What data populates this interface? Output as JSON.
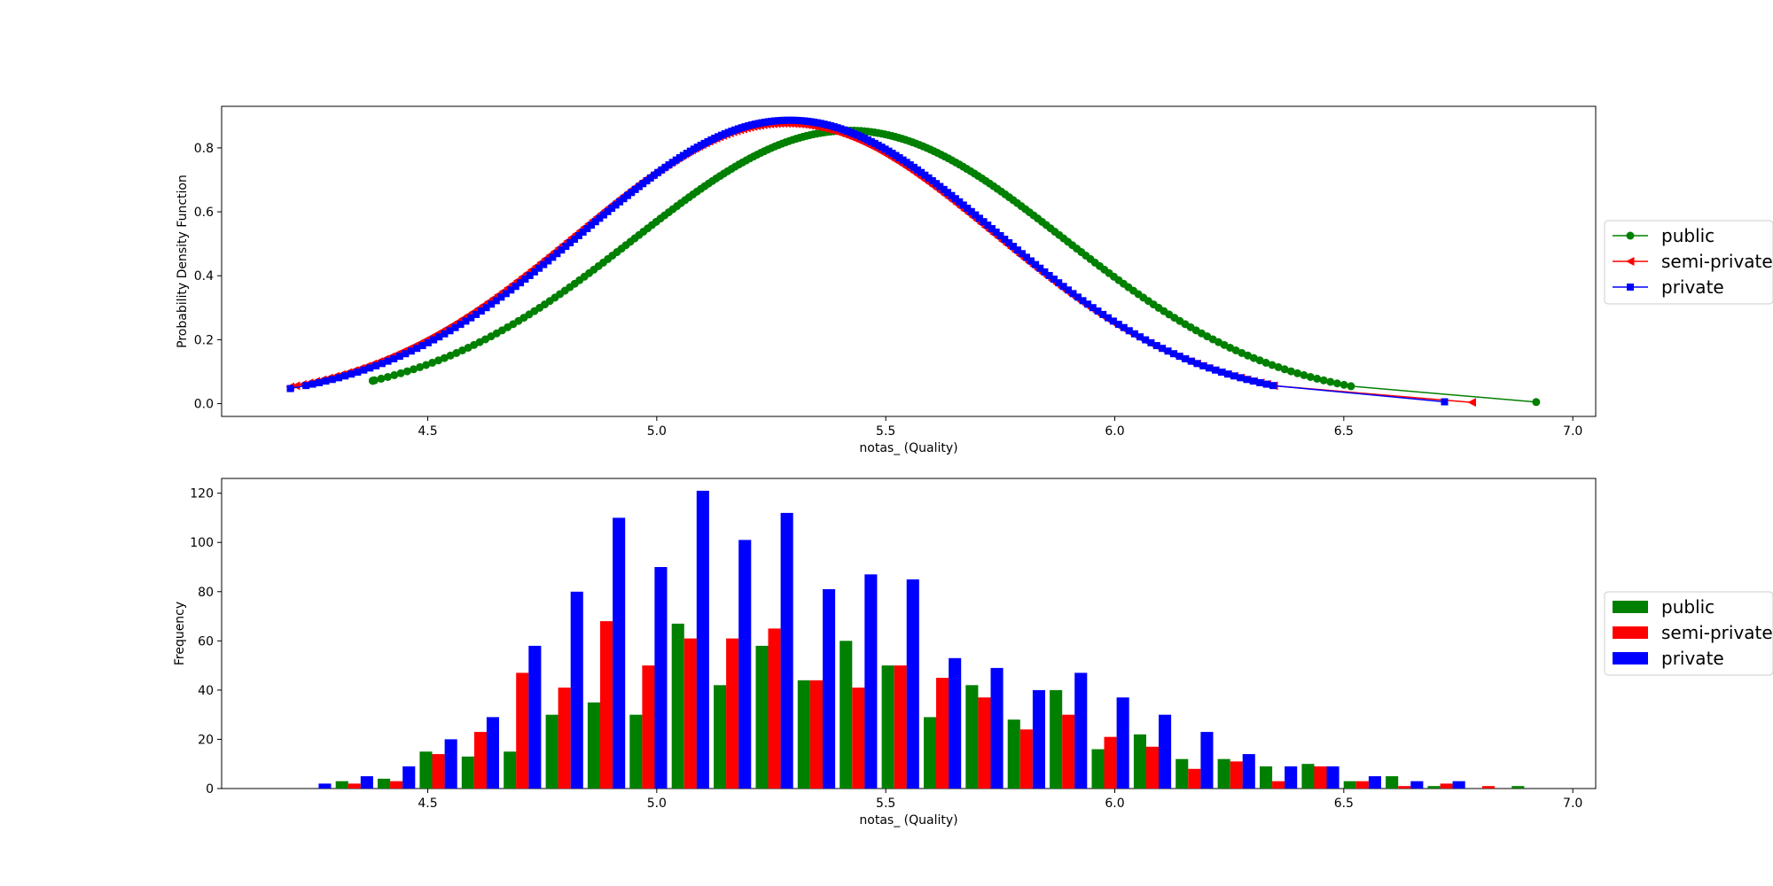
{
  "chart_data": [
    {
      "type": "line",
      "xlabel": "notas_ (Quality)",
      "ylabel": "Probability Density Function",
      "xlim": [
        4.05,
        7.05
      ],
      "ylim": [
        -0.04,
        0.93
      ],
      "xticks": [
        "4.5",
        "5.0",
        "5.5",
        "6.0",
        "6.5",
        "7.0"
      ],
      "yticks": [
        "0.0",
        "0.2",
        "0.4",
        "0.6",
        "0.8"
      ],
      "legend_position": "right-outside",
      "series": [
        {
          "name": "public",
          "color": "#008000",
          "marker": "circle",
          "mean": 5.42,
          "sd": 0.467,
          "x_range": [
            4.38,
            6.92
          ]
        },
        {
          "name": "semi-private",
          "color": "#ff0000",
          "marker": "triangle-left",
          "mean": 5.28,
          "sd": 0.455,
          "x_range": [
            4.2,
            6.78
          ]
        },
        {
          "name": "private",
          "color": "#0000ff",
          "marker": "square",
          "mean": 5.29,
          "sd": 0.45,
          "x_range": [
            4.2,
            6.72
          ]
        }
      ]
    },
    {
      "type": "bar",
      "xlabel": "notas_ (Quality)",
      "ylabel": "Frequency",
      "xlim": [
        4.05,
        7.05
      ],
      "ylim": [
        0,
        126
      ],
      "xticks": [
        "4.5",
        "5.0",
        "5.5",
        "6.0",
        "6.5",
        "7.0"
      ],
      "yticks": [
        "0",
        "20",
        "40",
        "60",
        "80",
        "100",
        "120"
      ],
      "legend_position": "right-outside",
      "bin_start": 4.2,
      "bin_width": 0.0917,
      "series": [
        {
          "name": "public",
          "color": "#008000",
          "values": [
            0,
            3,
            4,
            15,
            13,
            15,
            30,
            35,
            30,
            67,
            42,
            58,
            44,
            60,
            50,
            29,
            42,
            28,
            40,
            16,
            22,
            12,
            12,
            9,
            10,
            3,
            5,
            1,
            0,
            1
          ]
        },
        {
          "name": "semi-private",
          "color": "#ff0000",
          "values": [
            0,
            2,
            3,
            14,
            23,
            47,
            41,
            68,
            50,
            61,
            61,
            65,
            44,
            41,
            50,
            45,
            37,
            24,
            30,
            21,
            17,
            8,
            11,
            3,
            9,
            3,
            1,
            2,
            1,
            0
          ]
        },
        {
          "name": "private",
          "color": "#0000ff",
          "values": [
            2,
            5,
            9,
            20,
            29,
            58,
            80,
            110,
            90,
            121,
            101,
            112,
            81,
            87,
            85,
            53,
            49,
            40,
            47,
            37,
            30,
            23,
            14,
            9,
            9,
            5,
            3,
            3,
            0,
            0
          ]
        }
      ]
    }
  ]
}
